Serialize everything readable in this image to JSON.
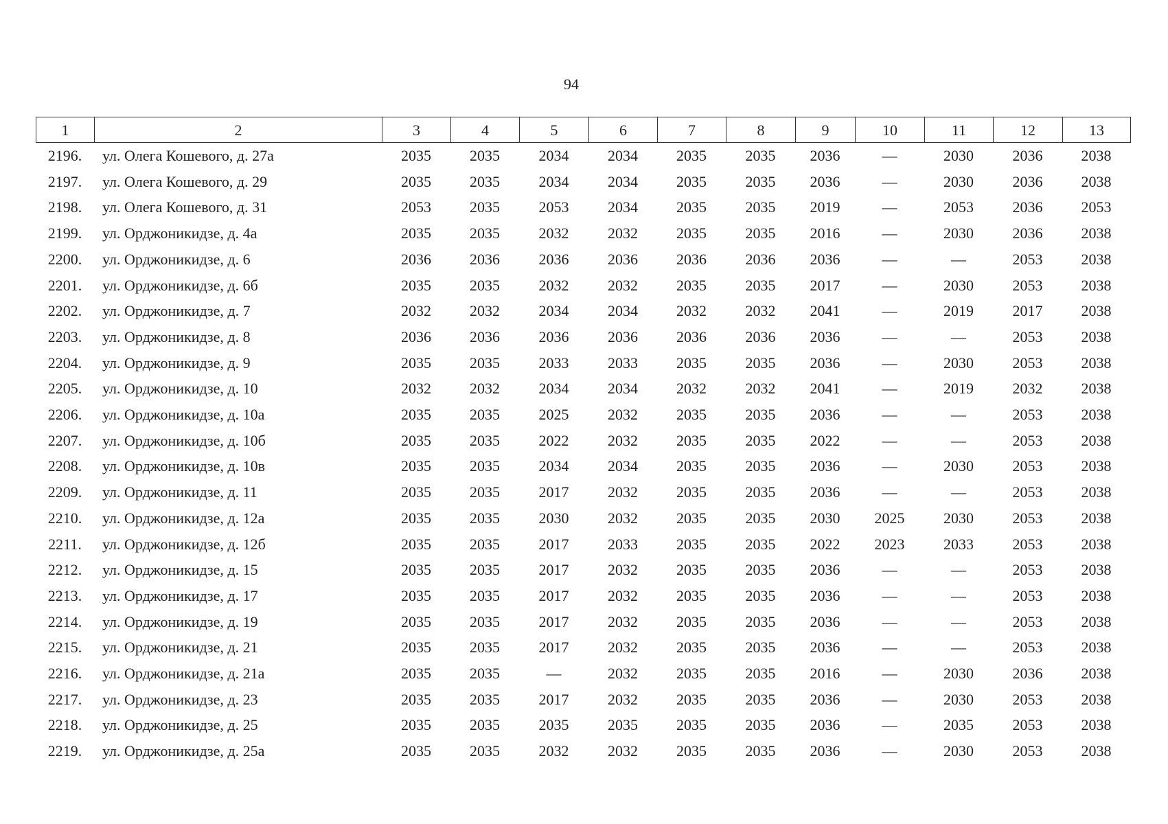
{
  "page_number": "94",
  "table": {
    "header": [
      "1",
      "2",
      "3",
      "4",
      "5",
      "6",
      "7",
      "8",
      "9",
      "10",
      "11",
      "12",
      "13"
    ],
    "rows": [
      [
        "2196.",
        "ул. Олега Кошевого, д. 27а",
        "2035",
        "2035",
        "2034",
        "2034",
        "2035",
        "2035",
        "2036",
        "—",
        "2030",
        "2036",
        "2038"
      ],
      [
        "2197.",
        "ул. Олега Кошевого, д. 29",
        "2035",
        "2035",
        "2034",
        "2034",
        "2035",
        "2035",
        "2036",
        "—",
        "2030",
        "2036",
        "2038"
      ],
      [
        "2198.",
        "ул. Олега Кошевого, д. 31",
        "2053",
        "2035",
        "2053",
        "2034",
        "2035",
        "2035",
        "2019",
        "—",
        "2053",
        "2036",
        "2053"
      ],
      [
        "2199.",
        "ул. Орджоникидзе, д. 4а",
        "2035",
        "2035",
        "2032",
        "2032",
        "2035",
        "2035",
        "2016",
        "—",
        "2030",
        "2036",
        "2038"
      ],
      [
        "2200.",
        "ул. Орджоникидзе, д. 6",
        "2036",
        "2036",
        "2036",
        "2036",
        "2036",
        "2036",
        "2036",
        "—",
        "—",
        "2053",
        "2038"
      ],
      [
        "2201.",
        "ул. Орджоникидзе, д. 6б",
        "2035",
        "2035",
        "2032",
        "2032",
        "2035",
        "2035",
        "2017",
        "—",
        "2030",
        "2053",
        "2038"
      ],
      [
        "2202.",
        "ул. Орджоникидзе, д. 7",
        "2032",
        "2032",
        "2034",
        "2034",
        "2032",
        "2032",
        "2041",
        "—",
        "2019",
        "2017",
        "2038"
      ],
      [
        "2203.",
        "ул. Орджоникидзе, д. 8",
        "2036",
        "2036",
        "2036",
        "2036",
        "2036",
        "2036",
        "2036",
        "—",
        "—",
        "2053",
        "2038"
      ],
      [
        "2204.",
        "ул. Орджоникидзе, д. 9",
        "2035",
        "2035",
        "2033",
        "2033",
        "2035",
        "2035",
        "2036",
        "—",
        "2030",
        "2053",
        "2038"
      ],
      [
        "2205.",
        "ул. Орджоникидзе, д. 10",
        "2032",
        "2032",
        "2034",
        "2034",
        "2032",
        "2032",
        "2041",
        "—",
        "2019",
        "2032",
        "2038"
      ],
      [
        "2206.",
        "ул. Орджоникидзе, д. 10а",
        "2035",
        "2035",
        "2025",
        "2032",
        "2035",
        "2035",
        "2036",
        "—",
        "—",
        "2053",
        "2038"
      ],
      [
        "2207.",
        "ул. Орджоникидзе, д. 10б",
        "2035",
        "2035",
        "2022",
        "2032",
        "2035",
        "2035",
        "2022",
        "—",
        "—",
        "2053",
        "2038"
      ],
      [
        "2208.",
        "ул. Орджоникидзе, д. 10в",
        "2035",
        "2035",
        "2034",
        "2034",
        "2035",
        "2035",
        "2036",
        "—",
        "2030",
        "2053",
        "2038"
      ],
      [
        "2209.",
        "ул. Орджоникидзе, д. 11",
        "2035",
        "2035",
        "2017",
        "2032",
        "2035",
        "2035",
        "2036",
        "—",
        "—",
        "2053",
        "2038"
      ],
      [
        "2210.",
        "ул. Орджоникидзе, д. 12а",
        "2035",
        "2035",
        "2030",
        "2032",
        "2035",
        "2035",
        "2030",
        "2025",
        "2030",
        "2053",
        "2038"
      ],
      [
        "2211.",
        "ул. Орджоникидзе, д. 12б",
        "2035",
        "2035",
        "2017",
        "2033",
        "2035",
        "2035",
        "2022",
        "2023",
        "2033",
        "2053",
        "2038"
      ],
      [
        "2212.",
        "ул. Орджоникидзе, д. 15",
        "2035",
        "2035",
        "2017",
        "2032",
        "2035",
        "2035",
        "2036",
        "—",
        "—",
        "2053",
        "2038"
      ],
      [
        "2213.",
        "ул. Орджоникидзе, д. 17",
        "2035",
        "2035",
        "2017",
        "2032",
        "2035",
        "2035",
        "2036",
        "—",
        "—",
        "2053",
        "2038"
      ],
      [
        "2214.",
        "ул. Орджоникидзе, д. 19",
        "2035",
        "2035",
        "2017",
        "2032",
        "2035",
        "2035",
        "2036",
        "—",
        "—",
        "2053",
        "2038"
      ],
      [
        "2215.",
        "ул. Орджоникидзе, д. 21",
        "2035",
        "2035",
        "2017",
        "2032",
        "2035",
        "2035",
        "2036",
        "—",
        "—",
        "2053",
        "2038"
      ],
      [
        "2216.",
        "ул. Орджоникидзе, д. 21а",
        "2035",
        "2035",
        "—",
        "2032",
        "2035",
        "2035",
        "2016",
        "—",
        "2030",
        "2036",
        "2038"
      ],
      [
        "2217.",
        "ул. Орджоникидзе, д. 23",
        "2035",
        "2035",
        "2017",
        "2032",
        "2035",
        "2035",
        "2036",
        "—",
        "2030",
        "2053",
        "2038"
      ],
      [
        "2218.",
        "ул. Орджоникидзе, д. 25",
        "2035",
        "2035",
        "2035",
        "2035",
        "2035",
        "2035",
        "2036",
        "—",
        "2035",
        "2053",
        "2038"
      ],
      [
        "2219.",
        "ул. Орджоникидзе, д. 25а",
        "2035",
        "2035",
        "2032",
        "2032",
        "2035",
        "2035",
        "2036",
        "—",
        "2030",
        "2053",
        "2038"
      ]
    ]
  }
}
